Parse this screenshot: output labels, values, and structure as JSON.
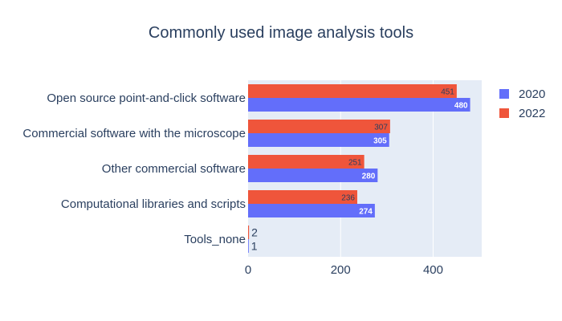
{
  "chart_data": {
    "type": "bar",
    "orientation": "horizontal",
    "title": "Commonly used image analysis tools",
    "categories": [
      "Open source point-and-click software",
      "Commercial software with the microscope",
      "Other commercial software",
      "Computational libraries and scripts",
      "Tools_none"
    ],
    "series": [
      {
        "name": "2022",
        "color": "#EF553B",
        "values": [
          451,
          307,
          251,
          236,
          2
        ]
      },
      {
        "name": "2020",
        "color": "#636EFA",
        "values": [
          480,
          305,
          280,
          274,
          1
        ]
      }
    ],
    "legend_order": [
      "2020",
      "2022"
    ],
    "xlim": [
      0,
      505
    ],
    "xticks": [
      0,
      200,
      400
    ],
    "grid": true,
    "legend_position": "right",
    "plot_background": "#E5ECF6"
  }
}
